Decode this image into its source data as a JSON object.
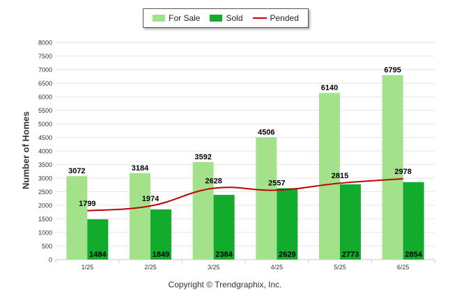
{
  "chart_data": {
    "type": "bar",
    "categories": [
      "1/25",
      "2/25",
      "3/25",
      "4/25",
      "5/25",
      "6/25"
    ],
    "series": [
      {
        "name": "For Sale",
        "kind": "bar",
        "color": "#a3e28b",
        "values": [
          3072,
          3184,
          3592,
          4506,
          6140,
          6795
        ]
      },
      {
        "name": "Sold",
        "kind": "bar",
        "color": "#13ab2e",
        "values": [
          1484,
          1849,
          2384,
          2629,
          2773,
          2854
        ]
      },
      {
        "name": "Pended",
        "kind": "line",
        "color": "#c00000",
        "values": [
          1799,
          1974,
          2628,
          2557,
          2815,
          2978
        ]
      }
    ],
    "ylabel": "Number of Homes",
    "xlabel": "",
    "ylim": [
      0,
      8000
    ],
    "yticks": [
      0,
      500,
      1000,
      1500,
      2000,
      2500,
      3000,
      3500,
      4000,
      4500,
      5000,
      5500,
      6000,
      6500,
      7000,
      7500,
      8000
    ],
    "grid": true,
    "legend": "top-center"
  },
  "footer": {
    "copyright": "Copyright © Trendgraphix, Inc."
  }
}
